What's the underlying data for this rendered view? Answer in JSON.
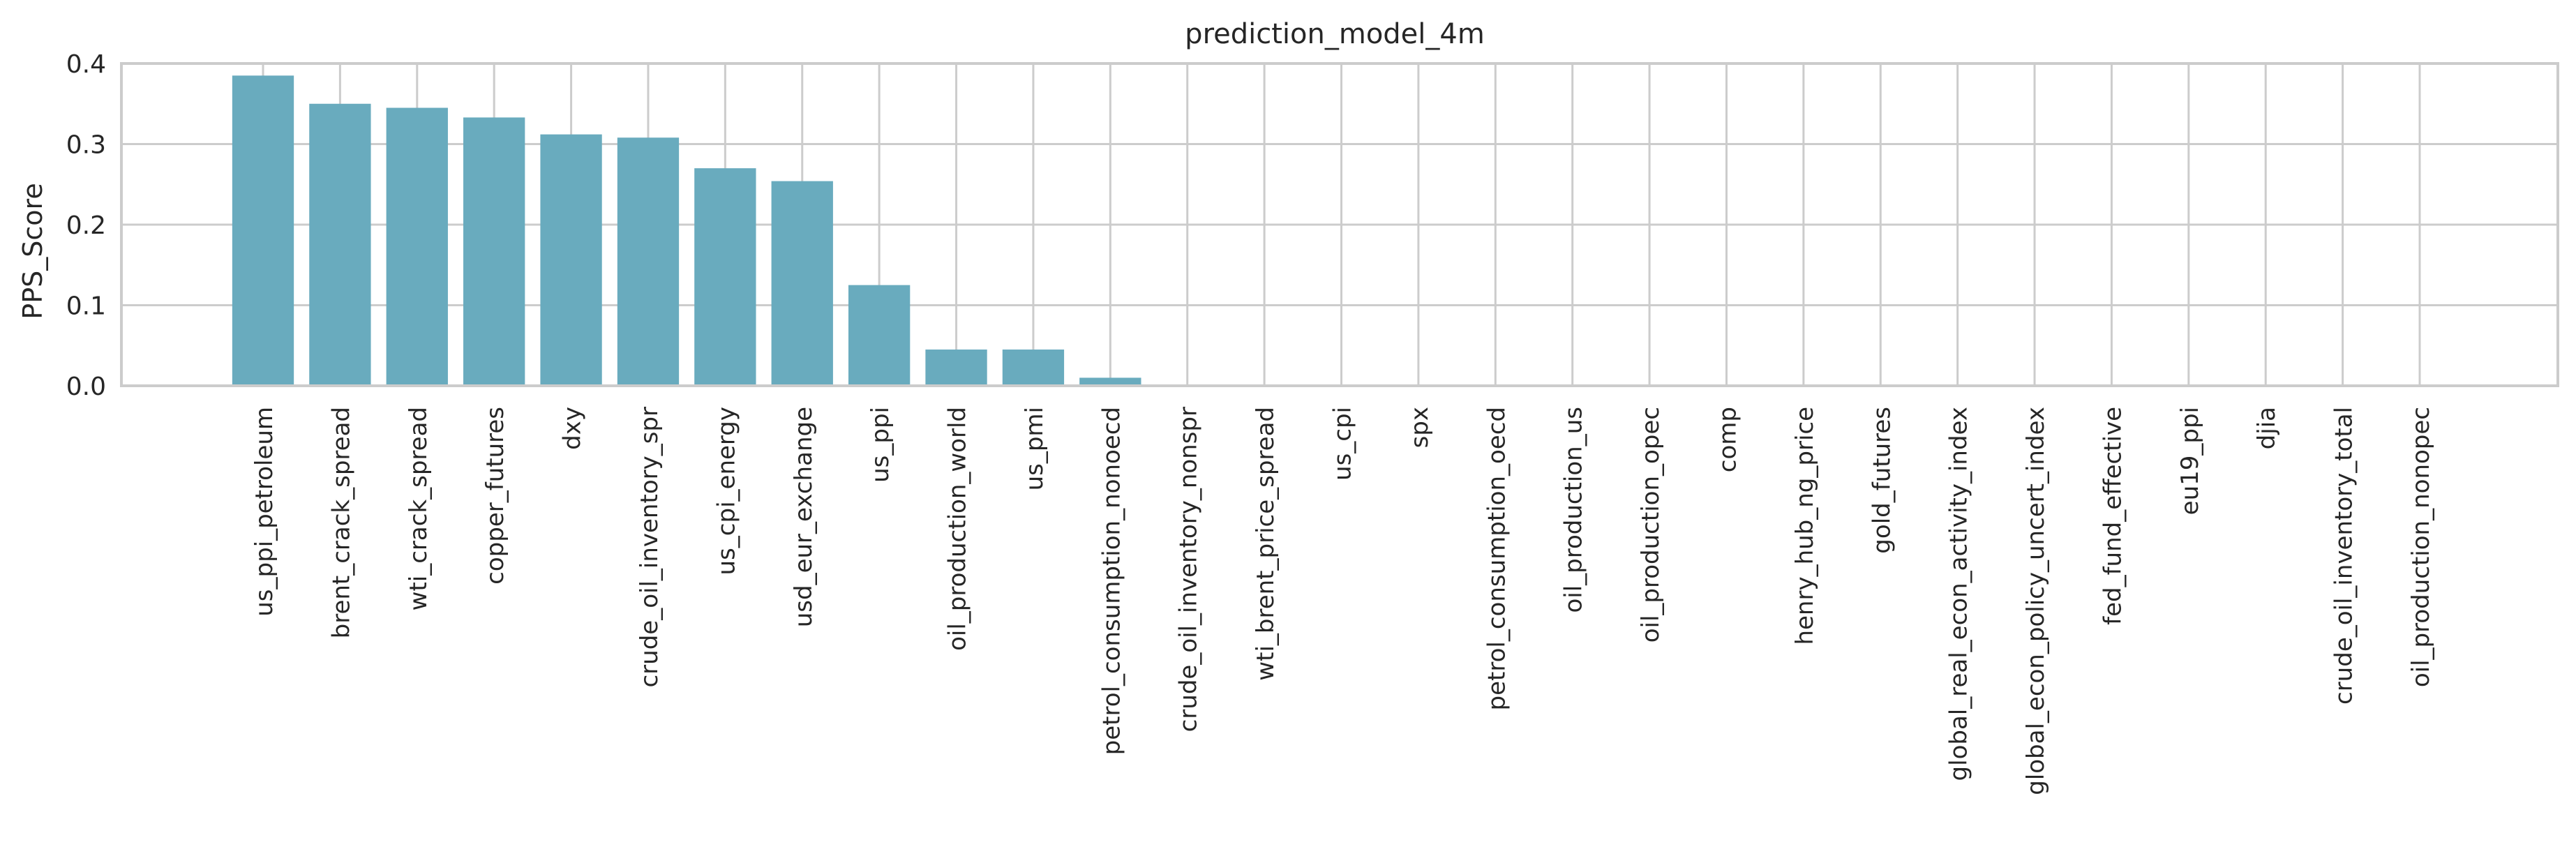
{
  "chart_data": {
    "type": "bar",
    "title": "prediction_model_4m",
    "xlabel": "",
    "ylabel": "PPS_Score",
    "ylim": [
      0,
      0.4
    ],
    "yticks": [
      "0.0",
      "0.1",
      "0.2",
      "0.3",
      "0.4"
    ],
    "grid": true,
    "legend": "none",
    "bar_color": "#69abbe",
    "categories": [
      "us_ppi_petroleum",
      "brent_crack_spread",
      "wti_crack_spread",
      "copper_futures",
      "dxy",
      "crude_oil_inventory_spr",
      "us_cpi_energy",
      "usd_eur_exchange",
      "us_ppi",
      "oil_production_world",
      "us_pmi",
      "petrol_consumption_nonoecd",
      "crude_oil_inventory_nonspr",
      "wti_brent_price_spread",
      "us_cpi",
      "spx",
      "petrol_consumption_oecd",
      "oil_production_us",
      "oil_production_opec",
      "comp",
      "henry_hub_ng_price",
      "gold_futures",
      "global_real_econ_activity_index",
      "global_econ_policy_uncert_index",
      "fed_fund_effective",
      "eu19_ppi",
      "djia",
      "crude_oil_inventory_total",
      "oil_production_nonopec"
    ],
    "values": [
      0.385,
      0.35,
      0.345,
      0.333,
      0.312,
      0.308,
      0.27,
      0.254,
      0.125,
      0.045,
      0.045,
      0.01,
      0,
      0,
      0,
      0,
      0,
      0,
      0,
      0,
      0,
      0,
      0,
      0,
      0,
      0,
      0,
      0,
      0
    ]
  }
}
